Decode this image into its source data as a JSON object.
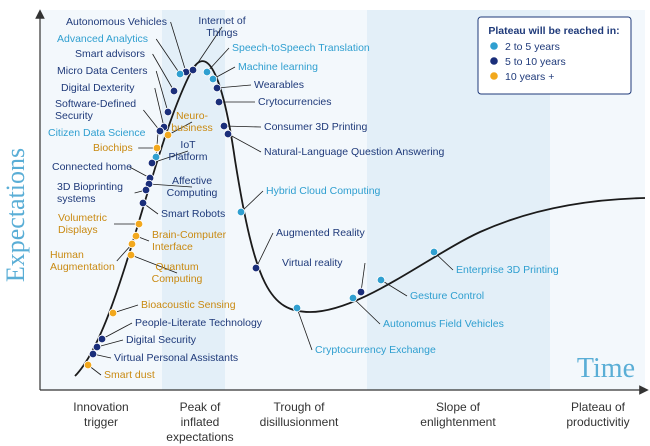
{
  "colors": {
    "short": "#2f9fd0",
    "medium": "#1a2e7a",
    "long": "#f2a81d",
    "label_short": "#2f9fd0",
    "label_medium": "#1f3a7a",
    "label_long": "#c98a12"
  },
  "axes": {
    "y_title": "Expectations",
    "x_title": "Time"
  },
  "legend": {
    "title": "Plateau will be reached in:",
    "items": [
      {
        "label": "2 to 5 years",
        "category": "short"
      },
      {
        "label": "5 to 10 years",
        "category": "medium"
      },
      {
        "label": "10 years +",
        "category": "long"
      }
    ]
  },
  "phases": [
    {
      "lines": [
        "Innovation",
        "trigger"
      ]
    },
    {
      "lines": [
        "Peak of",
        "inflated",
        "expectations"
      ]
    },
    {
      "lines": [
        "Trough of",
        "disillusionment"
      ]
    },
    {
      "lines": [
        "Slope of",
        "enlightenment"
      ]
    },
    {
      "lines": [
        "Plateau of",
        "productivitiy"
      ]
    }
  ],
  "technologies": [
    {
      "lines": [
        "Autonomous Vehicles"
      ],
      "category": "medium"
    },
    {
      "lines": [
        "Internet of",
        "Things"
      ],
      "category": "medium"
    },
    {
      "lines": [
        "Advanced Analytics"
      ],
      "category": "short"
    },
    {
      "lines": [
        "Speech-toSpeech Translation"
      ],
      "category": "short"
    },
    {
      "lines": [
        "Smart advisors"
      ],
      "category": "medium"
    },
    {
      "lines": [
        "Machine learning"
      ],
      "category": "short"
    },
    {
      "lines": [
        "Micro Data Centers"
      ],
      "category": "medium"
    },
    {
      "lines": [
        "Wearables"
      ],
      "category": "medium"
    },
    {
      "lines": [
        "Digital Dexterity"
      ],
      "category": "medium"
    },
    {
      "lines": [
        "Crytocurrencies"
      ],
      "category": "medium"
    },
    {
      "lines": [
        "Software-Defined",
        "Security"
      ],
      "category": "medium"
    },
    {
      "lines": [
        "Neuro-",
        "business"
      ],
      "category": "long"
    },
    {
      "lines": [
        "Consumer 3D Printing"
      ],
      "category": "medium"
    },
    {
      "lines": [
        "Citizen Data Science"
      ],
      "category": "short"
    },
    {
      "lines": [
        "Natural-Language Question Answering"
      ],
      "category": "medium"
    },
    {
      "lines": [
        "Biochips"
      ],
      "category": "long"
    },
    {
      "lines": [
        "IoT",
        "Platform"
      ],
      "category": "medium"
    },
    {
      "lines": [
        "Connected home"
      ],
      "category": "medium"
    },
    {
      "lines": [
        "Affective",
        "Computing"
      ],
      "category": "medium"
    },
    {
      "lines": [
        "3D Bioprinting",
        "systems"
      ],
      "category": "medium"
    },
    {
      "lines": [
        "Hybrid Cloud Computing"
      ],
      "category": "short"
    },
    {
      "lines": [
        "Smart Robots"
      ],
      "category": "medium"
    },
    {
      "lines": [
        "Volumetric",
        "Displays"
      ],
      "category": "long"
    },
    {
      "lines": [
        "Brain-Computer",
        "Interface"
      ],
      "category": "long"
    },
    {
      "lines": [
        "Augmented Reality"
      ],
      "category": "medium"
    },
    {
      "lines": [
        "Human",
        "Augmentation"
      ],
      "category": "long"
    },
    {
      "lines": [
        "Quantum",
        "Computing"
      ],
      "category": "long"
    },
    {
      "lines": [
        "Virtual reality"
      ],
      "category": "medium"
    },
    {
      "lines": [
        "Enterprise 3D Printing"
      ],
      "category": "short"
    },
    {
      "lines": [
        "Gesture Control"
      ],
      "category": "short"
    },
    {
      "lines": [
        "Autonomus Field Vehicles"
      ],
      "category": "short"
    },
    {
      "lines": [
        "Bioacoustic Sensing"
      ],
      "category": "long"
    },
    {
      "lines": [
        "Cryptocurrency Exchange"
      ],
      "category": "short"
    },
    {
      "lines": [
        "People-Literate Technology"
      ],
      "category": "medium"
    },
    {
      "lines": [
        "Digital Security"
      ],
      "category": "medium"
    },
    {
      "lines": [
        "Virtual Personal Assistants"
      ],
      "category": "medium"
    },
    {
      "lines": [
        "Smart dust"
      ],
      "category": "long"
    }
  ]
}
